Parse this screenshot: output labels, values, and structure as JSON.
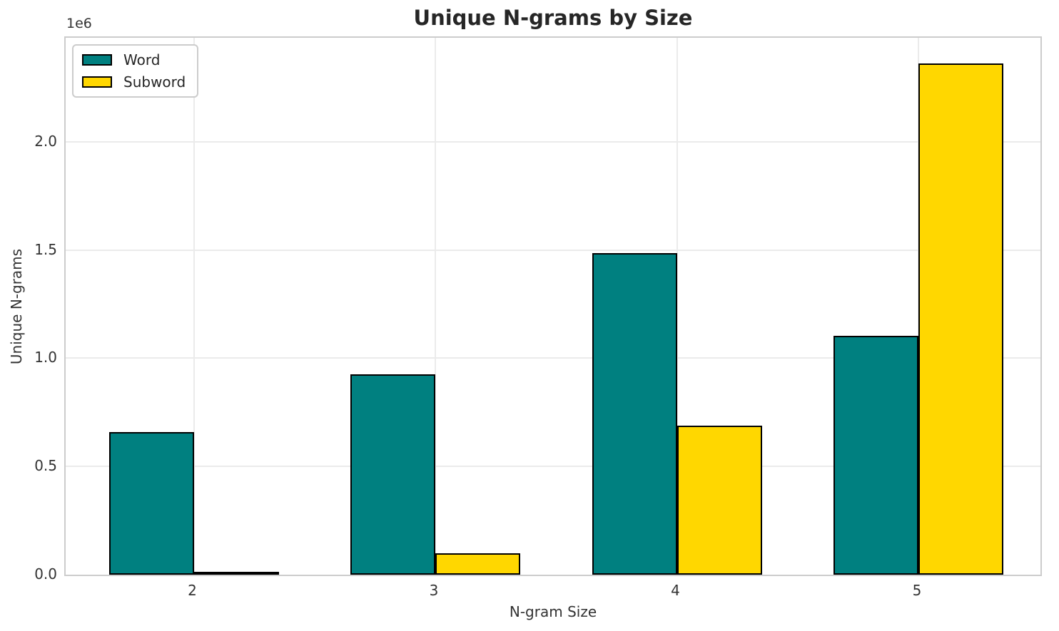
{
  "chart_data": {
    "type": "bar",
    "title": "Unique N-grams by Size",
    "xlabel": "N-gram Size",
    "ylabel": "Unique N-grams",
    "categories": [
      "2",
      "3",
      "4",
      "5"
    ],
    "series": [
      {
        "name": "Word",
        "color": "#008080",
        "values": [
          660000,
          925000,
          1485000,
          1105000
        ]
      },
      {
        "name": "Subword",
        "color": "#FFD700",
        "values": [
          10000,
          100000,
          690000,
          2360000
        ]
      }
    ],
    "bar_edge_color": "#000000",
    "ylim": [
      0,
      2480000
    ],
    "yticks": {
      "values": [
        0,
        500000,
        1000000,
        1500000,
        2000000
      ],
      "labels": [
        "0.0",
        "0.5",
        "1.0",
        "1.5",
        "2.0"
      ],
      "offset_label": "1e6"
    },
    "grid": "both",
    "legend": {
      "position": "upper left",
      "entries": [
        "Word",
        "Subword"
      ]
    },
    "colors": {
      "grid": "#ebebeb",
      "spine": "#cccccc",
      "text": "#262626",
      "background": "#ffffff"
    }
  }
}
